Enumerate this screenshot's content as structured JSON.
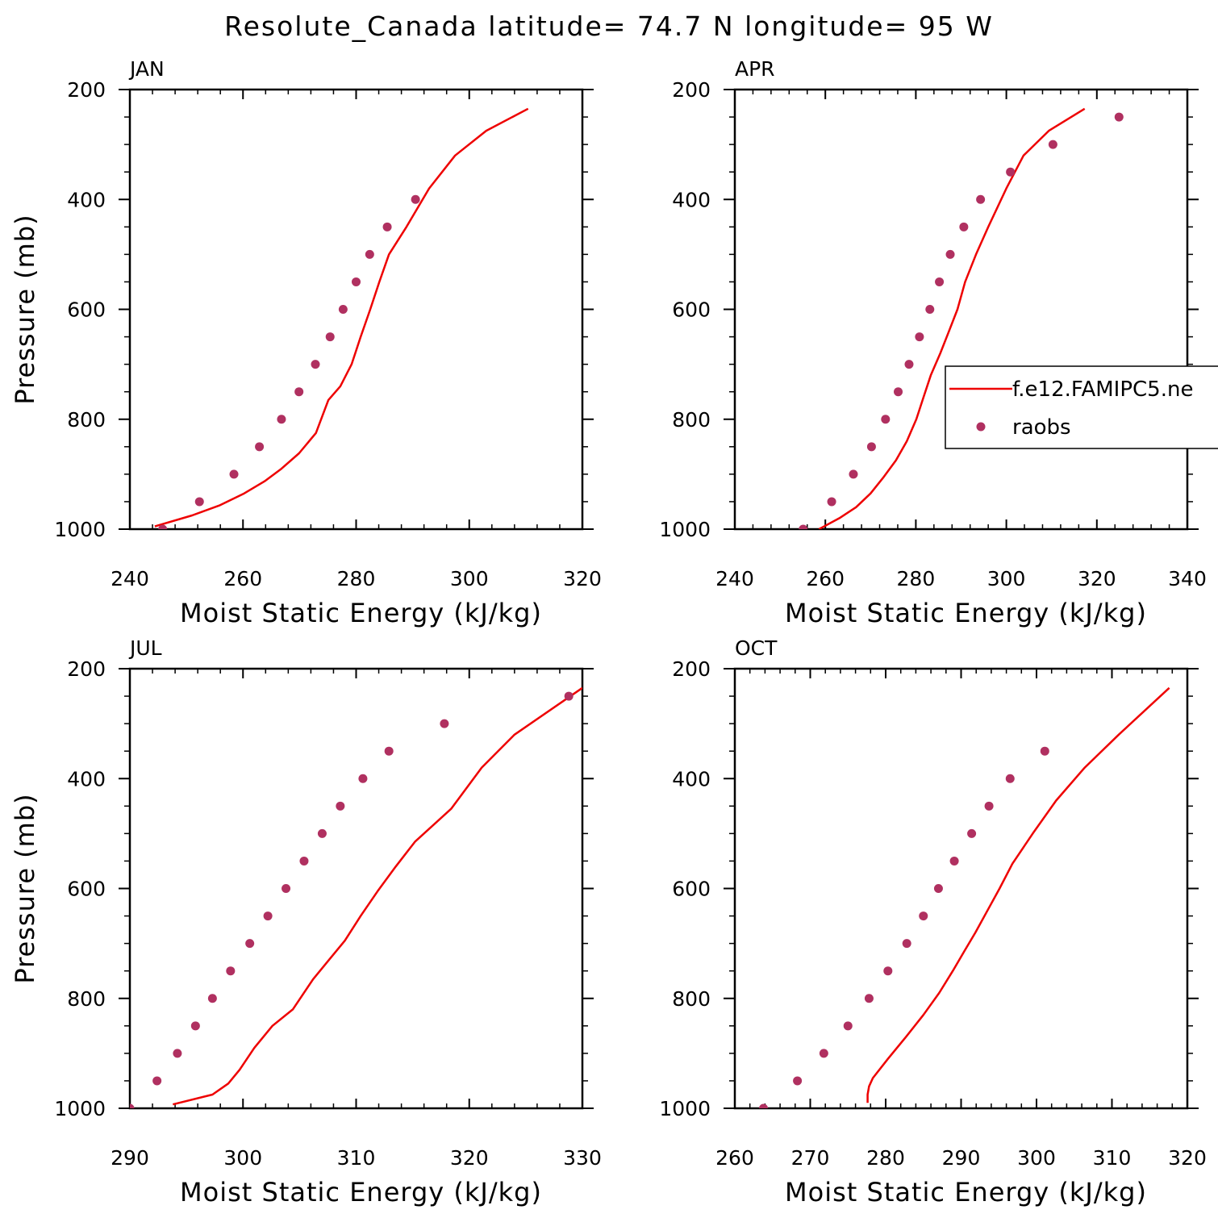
{
  "title": "Resolute_Canada  latitude= 74.7 N longitude= 95 W",
  "colors": {
    "model": "#ee0000",
    "obs": "#b03060"
  },
  "legend": {
    "model_label": "f.e12.FAMIPC5.ne",
    "obs_label": "raobs",
    "placement": "right-middle of APR panel"
  },
  "chart_data": [
    {
      "type": "scatter",
      "panel": "JAN",
      "title": "JAN",
      "xlabel": "Moist Static Energy (kJ/kg)",
      "ylabel": "Pressure (mb)",
      "xlim": [
        240,
        320
      ],
      "ylim": [
        1000,
        200
      ],
      "xticks": [
        240,
        260,
        280,
        300,
        320
      ],
      "yticks": [
        200,
        400,
        600,
        800,
        1000
      ],
      "series": [
        {
          "name": "f.e12.FAMIPC5.ne",
          "kind": "line",
          "x": [
            244.4,
            251,
            255.8,
            260.2,
            263.8,
            266.8,
            269.9,
            272.9,
            275.1,
            277.2,
            279.2,
            280.8,
            282.5,
            284.1,
            285.8,
            288.9,
            292.9,
            297.5,
            303,
            310.4
          ],
          "y": [
            995,
            975,
            957,
            935,
            913,
            890,
            862,
            825,
            765,
            740,
            700,
            650,
            600,
            550,
            500,
            450,
            380,
            320,
            275,
            235
          ]
        },
        {
          "name": "raobs",
          "kind": "points",
          "x": [
            245.8,
            252.3,
            258.4,
            262.9,
            266.8,
            269.9,
            272.8,
            275.4,
            277.7,
            280,
            282.4,
            285.5,
            290.5
          ],
          "y": [
            1000,
            950,
            900,
            850,
            800,
            750,
            700,
            650,
            600,
            550,
            500,
            450,
            400
          ]
        }
      ]
    },
    {
      "type": "scatter",
      "panel": "APR",
      "title": "APR",
      "xlabel": "Moist Static Energy (kJ/kg)",
      "ylabel": "",
      "xlim": [
        240,
        340
      ],
      "ylim": [
        1000,
        200
      ],
      "xticks": [
        240,
        260,
        280,
        300,
        320,
        340
      ],
      "yticks": [
        200,
        400,
        600,
        800,
        1000
      ],
      "series": [
        {
          "name": "f.e12.FAMIPC5.ne",
          "kind": "line",
          "x": [
            258.6,
            263.1,
            266.8,
            270,
            272.9,
            275.6,
            278,
            280.1,
            281.7,
            283.3,
            285.4,
            287.3,
            289.2,
            290.9,
            293.3,
            296,
            300,
            303.8,
            309.4,
            317.3
          ],
          "y": [
            1000,
            980,
            960,
            935,
            905,
            875,
            840,
            800,
            760,
            720,
            680,
            640,
            600,
            550,
            500,
            450,
            380,
            320,
            275,
            235
          ]
        },
        {
          "name": "raobs",
          "kind": "points",
          "x": [
            255.1,
            261.4,
            266.2,
            270.2,
            273.3,
            276.1,
            278.5,
            280.8,
            283.1,
            285.2,
            287.6,
            290.6,
            294.3,
            300.9,
            310.3,
            324.9
          ],
          "y": [
            1000,
            950,
            900,
            850,
            800,
            750,
            700,
            650,
            600,
            550,
            500,
            450,
            400,
            350,
            300,
            250
          ]
        }
      ]
    },
    {
      "type": "scatter",
      "panel": "JUL",
      "title": "JUL",
      "xlabel": "Moist Static Energy (kJ/kg)",
      "ylabel": "Pressure (mb)",
      "xlim": [
        290,
        330
      ],
      "ylim": [
        1000,
        200
      ],
      "xticks": [
        290,
        300,
        310,
        320,
        330
      ],
      "yticks": [
        200,
        400,
        600,
        800,
        1000
      ],
      "series": [
        {
          "name": "f.e12.FAMIPC5.ne",
          "kind": "line",
          "x": [
            293.8,
            297.3,
            298.7,
            299.7,
            301,
            302.6,
            304.4,
            306.2,
            307.6,
            309,
            310.4,
            311.9,
            313.5,
            315.2,
            318.4,
            321.1,
            324,
            330
          ],
          "y": [
            993,
            975,
            955,
            930,
            890,
            850,
            820,
            765,
            730,
            695,
            650,
            605,
            560,
            515,
            455,
            380,
            320,
            235
          ]
        },
        {
          "name": "raobs",
          "kind": "points",
          "x": [
            290,
            292.4,
            294.2,
            295.8,
            297.3,
            298.9,
            300.6,
            302.2,
            303.8,
            305.4,
            307,
            308.6,
            310.6,
            312.9,
            317.8,
            328.8
          ],
          "y": [
            1000,
            950,
            900,
            850,
            800,
            750,
            700,
            650,
            600,
            550,
            500,
            450,
            400,
            350,
            300,
            250
          ]
        }
      ]
    },
    {
      "type": "scatter",
      "panel": "OCT",
      "title": "OCT",
      "xlabel": "Moist Static Energy (kJ/kg)",
      "ylabel": "",
      "xlim": [
        260,
        320
      ],
      "ylim": [
        1000,
        200
      ],
      "xticks": [
        260,
        270,
        280,
        290,
        300,
        310,
        320
      ],
      "yticks": [
        200,
        400,
        600,
        800,
        1000
      ],
      "series": [
        {
          "name": "f.e12.FAMIPC5.ne",
          "kind": "line",
          "x": [
            277.6,
            277.6,
            277.8,
            278.3,
            280.3,
            282.7,
            285,
            287.1,
            288.9,
            290.4,
            291.9,
            293.5,
            295.1,
            296.8,
            299.5,
            302.6,
            306.4,
            310.9,
            317.6
          ],
          "y": [
            990,
            975,
            960,
            945,
            910,
            870,
            830,
            790,
            750,
            715,
            680,
            640,
            600,
            555,
            500,
            440,
            380,
            320,
            235
          ]
        },
        {
          "name": "raobs",
          "kind": "points",
          "x": [
            263.8,
            268.3,
            271.8,
            275,
            277.8,
            280.3,
            282.8,
            285,
            287,
            289.1,
            291.4,
            293.7,
            296.5,
            301.1
          ],
          "y": [
            1000,
            950,
            900,
            850,
            800,
            750,
            700,
            650,
            600,
            550,
            500,
            450,
            400,
            350
          ]
        }
      ]
    }
  ]
}
